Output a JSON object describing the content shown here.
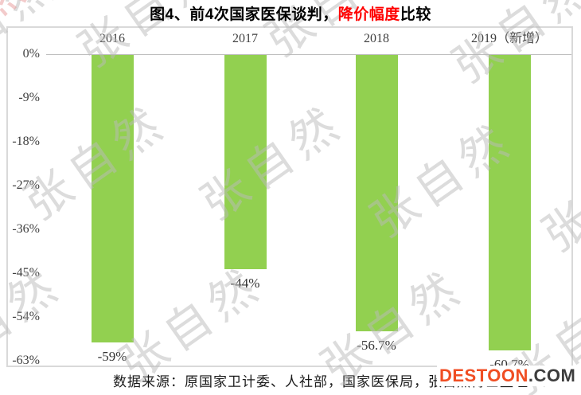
{
  "title": {
    "prefix": "图4、前4次国家医保谈判，",
    "highlight": "降价幅度",
    "suffix": "比较",
    "highlight_color": "#ff0000"
  },
  "chart_data": {
    "type": "bar",
    "title": "图4、前4次国家医保谈判，降价幅度比较",
    "categories": [
      "2016",
      "2017",
      "2018",
      "2019（新增）"
    ],
    "values": [
      -59,
      -44,
      -56.7,
      -60.7
    ],
    "value_labels": [
      "-59%",
      "-44%",
      "-56.7%",
      "-60.7%"
    ],
    "ytick_labels": [
      "0%",
      "-9%",
      "-18%",
      "-27%",
      "-36%",
      "-45%",
      "-54%",
      "-63%"
    ],
    "ylim": [
      -63,
      0
    ],
    "bar_color": "#92d050",
    "axis_line_color": "#bfbfbf",
    "grid": false,
    "legend": "none"
  },
  "source_note": "数据来源：原国家卫计委、人社部，国家医保局，张自然博士整理",
  "watermarks": {
    "diagonal_text": "张自然",
    "brand_name": "DESTOON",
    "brand_suffix": ".COM",
    "brand_color": "#f04e23"
  }
}
